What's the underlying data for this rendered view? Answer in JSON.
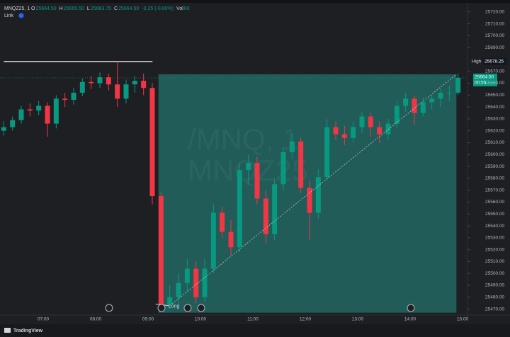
{
  "chart_data": {
    "type": "candlestick",
    "symbol": "MNQZ25, 1",
    "legend": [
      {
        "label": "O",
        "value": "25664.50"
      },
      {
        "label": "H",
        "value": "25665.50"
      },
      {
        "label": "L",
        "value": "25663.75"
      },
      {
        "label": "C",
        "value": "25664.50"
      },
      {
        "label": "",
        "value": "-0.25 (-0.00%)"
      },
      {
        "label": "Vol",
        "value": "60"
      }
    ],
    "link_label": "Link",
    "watermark": [
      "/MNQ, 1",
      "MNQZ25"
    ],
    "x": [
      "06:10",
      "06:20",
      "06:30",
      "06:40",
      "06:50",
      "07:00",
      "07:10",
      "07:20",
      "07:30",
      "07:40",
      "07:50",
      "08:00",
      "08:10",
      "08:20",
      "08:30",
      "08:40",
      "08:50",
      "09:00",
      "09:10",
      "09:20",
      "09:30",
      "09:40",
      "09:50",
      "10:00",
      "10:10",
      "10:20",
      "10:30",
      "10:40",
      "10:50",
      "11:00",
      "11:10",
      "11:20",
      "11:30",
      "11:40",
      "11:50",
      "12:00",
      "12:10",
      "12:20",
      "12:30",
      "12:40",
      "12:50",
      "13:00",
      "13:10",
      "13:20",
      "13:30",
      "13:40",
      "13:50",
      "14:00",
      "14:10",
      "14:20",
      "14:30",
      "14:40",
      "14:50"
    ],
    "open": [
      25620,
      25623,
      25629,
      25638,
      25637,
      25641,
      25626,
      25647,
      25646,
      25652,
      25661,
      25660,
      25665,
      25659,
      25647,
      25659,
      25662,
      25656,
      25565,
      25474,
      25480,
      25492,
      25504,
      25480,
      25504,
      25551,
      25535,
      25522,
      25587,
      25593,
      25563,
      25533,
      25575,
      25602,
      25611,
      25572,
      25551,
      25581,
      25623,
      25617,
      25614,
      25623,
      25632,
      25623,
      25617,
      25626,
      25641,
      25647,
      25635,
      25644,
      25647,
      25652,
      25652
    ],
    "high": [
      25628,
      25632,
      25641,
      25643,
      25645,
      25644,
      25650,
      25652,
      25656,
      25664,
      25666,
      25669,
      25668,
      25678.25,
      25663,
      25666,
      25668,
      25660,
      25568,
      25490,
      25500,
      25512,
      25510,
      25512,
      25558,
      25556,
      25545,
      25592,
      25600,
      25598,
      25570,
      25580,
      25606,
      25618,
      25614,
      25578,
      25588,
      25630,
      25628,
      25624,
      25628,
      25636,
      25635,
      25628,
      25630,
      25645,
      25652,
      25650,
      25648,
      25650,
      25656,
      25658,
      25668
    ],
    "low": [
      25616,
      25620,
      25626,
      25632,
      25633,
      25615,
      25622,
      25640,
      25642,
      25649,
      25655,
      25656,
      25654,
      25640,
      25643,
      25652,
      25650,
      25558,
      25468,
      25470,
      25474,
      25485,
      25475,
      25476,
      25500,
      25530,
      25515,
      25518,
      25575,
      25558,
      25525,
      25528,
      25570,
      25596,
      25568,
      25528,
      25546,
      25578,
      25612,
      25608,
      25610,
      25618,
      25615,
      25610,
      25612,
      25622,
      25636,
      25625,
      25632,
      25638,
      25640,
      25645,
      25650
    ],
    "close": [
      25623,
      25629,
      25638,
      25637,
      25641,
      25626,
      25647,
      25646,
      25652,
      25661,
      25660,
      25665,
      25659,
      25647,
      25659,
      25662,
      25656,
      25565,
      25474,
      25480,
      25492,
      25504,
      25480,
      25504,
      25551,
      25535,
      25522,
      25587,
      25593,
      25563,
      25533,
      25575,
      25602,
      25611,
      25572,
      25551,
      25581,
      25623,
      25617,
      25614,
      25623,
      25632,
      25623,
      25617,
      25626,
      25641,
      25647,
      25635,
      25644,
      25647,
      25652,
      25652,
      25664.5
    ],
    "up_color": "#089981",
    "down_color": "#f23645",
    "xticks": [
      "07:00",
      "08:00",
      "09:00",
      "10:00",
      "11:00",
      "12:00",
      "13:00",
      "14:00",
      "15:00"
    ],
    "ylim": [
      25465,
      25727
    ],
    "yticks": [
      {
        "value": 25470,
        "label": "25470.00"
      },
      {
        "value": 25480,
        "label": "25480.00"
      },
      {
        "value": 25490,
        "label": "25490.00"
      },
      {
        "value": 25500,
        "label": "25500.00"
      },
      {
        "value": 25510,
        "label": "25510.00"
      },
      {
        "value": 25520,
        "label": "25520.00"
      },
      {
        "value": 25530,
        "label": "25530.00"
      },
      {
        "value": 25540,
        "label": "25540.00"
      },
      {
        "value": 25550,
        "label": "25550.00"
      },
      {
        "value": 25560,
        "label": "25560.00"
      },
      {
        "value": 25570,
        "label": "25570.00"
      },
      {
        "value": 25580,
        "label": "25580.00"
      },
      {
        "value": 25590,
        "label": "25590.00"
      },
      {
        "value": 25600,
        "label": "25600.00"
      },
      {
        "value": 25610,
        "label": "25610.00"
      },
      {
        "value": 25620,
        "label": "25620.00"
      },
      {
        "value": 25630,
        "label": "25630.00"
      },
      {
        "value": 25640,
        "label": "25640.00"
      },
      {
        "value": 25650,
        "label": "25650.00"
      },
      {
        "value": 25660,
        "label": "25660.00"
      },
      {
        "value": 25670,
        "label": "25670.00"
      },
      {
        "value": 25690,
        "label": "25690.00"
      },
      {
        "value": 25700,
        "label": "25700.00"
      },
      {
        "value": 25710,
        "label": "25710.00"
      },
      {
        "value": 25720,
        "label": "25720.00"
      }
    ],
    "high_line": {
      "name": "High",
      "value": 25678.25,
      "label": "25678.25",
      "start": "06:10",
      "end": "09:10"
    },
    "last_price": {
      "value": 25664.5,
      "label": "25664.50",
      "countdown": "00:55"
    },
    "position": {
      "label": "Long",
      "entry": 25467,
      "target": 25667.5,
      "start": "09:12",
      "end": "14:53",
      "color": "#26a69a"
    },
    "footer": "TradingView"
  }
}
